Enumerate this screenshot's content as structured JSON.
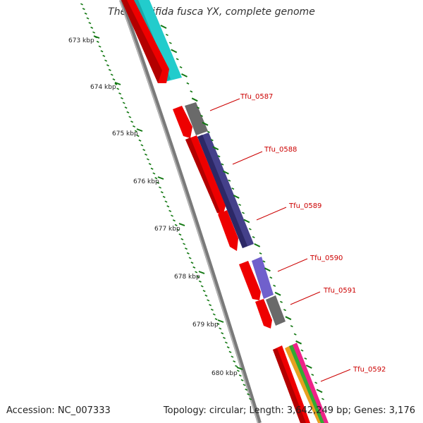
{
  "title": "Thermobifida fusca YX, complete genome",
  "footer": {
    "accession": "Accession: NC_007333",
    "summary": "Topology: circular; Length: 3,642,249 bp; Genes: 3,176"
  },
  "ruler": {
    "labels": [
      "673 kbp",
      "674 kbp",
      "675 kbp",
      "676 kbp",
      "677 kbp",
      "678 kbp",
      "679 kbp",
      "680 kbp"
    ]
  },
  "genes": [
    {
      "id": "Tfu_0587",
      "label": "Tfu_0587"
    },
    {
      "id": "Tfu_0588",
      "label": "Tfu_0588"
    },
    {
      "id": "Tfu_0589",
      "label": "Tfu_0589"
    },
    {
      "id": "Tfu_0590",
      "label": "Tfu_0590"
    },
    {
      "id": "Tfu_0591",
      "label": "Tfu_0591"
    },
    {
      "id": "Tfu_0592",
      "label": "Tfu_0592"
    }
  ],
  "colors": {
    "label_red": "#cc0000",
    "cds_red": "#ee0000",
    "cds_dark_red": "#b30000",
    "cyan": "#22cccc",
    "grey": "#707070",
    "navy": "#44408a",
    "purple": "#7060cc",
    "ruler_green": "#117711",
    "backbone": "#7a7a7a"
  }
}
